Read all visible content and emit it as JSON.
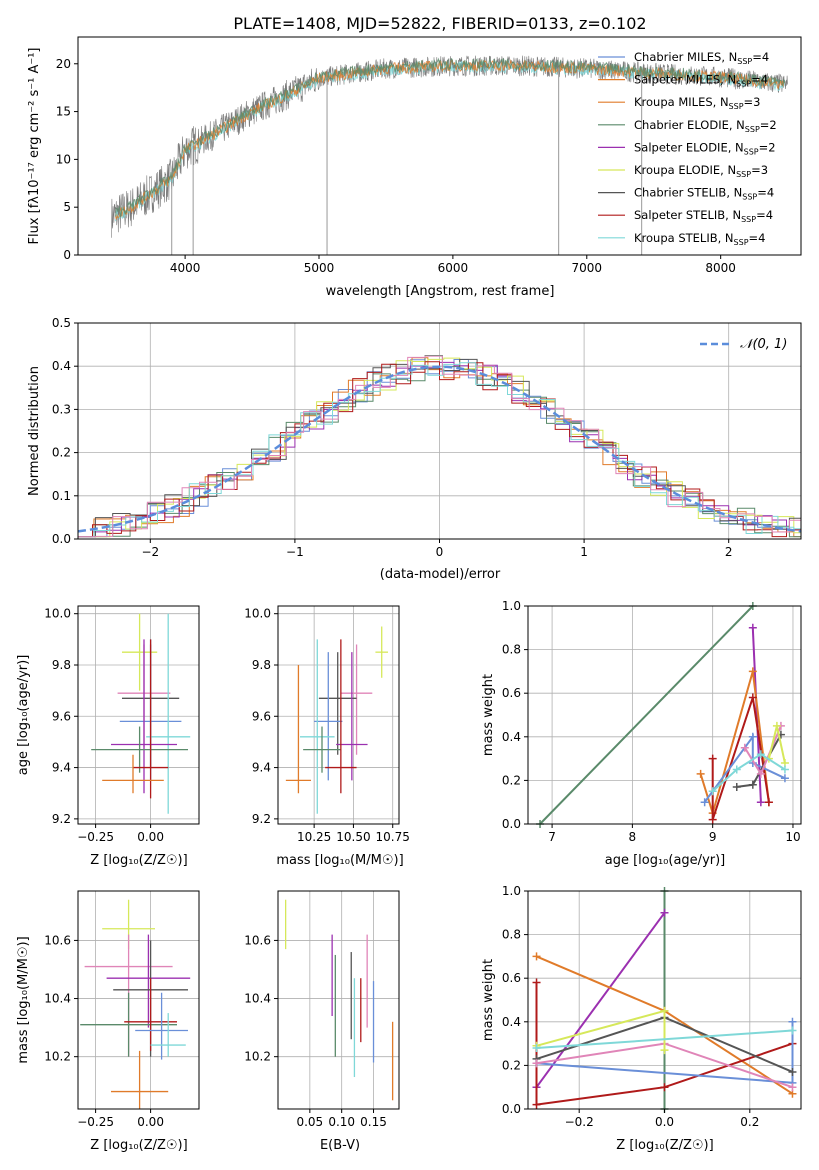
{
  "panel1": {
    "title": "PLATE=1408, MJD=52822, FIBERID=0133, z=0.102",
    "xlabel": "wavelength [Angstrom, rest frame]",
    "ylabel": "Flux [fλ10⁻¹⁷ erg cm⁻² s⁻¹ A⁻¹]",
    "legend": [
      {
        "name": "Chabrier MILES, N",
        "sub": "SSP",
        "tail": "=4",
        "color": "#6a8fd8"
      },
      {
        "name": "Salpeter MILES, N",
        "sub": "SSP",
        "tail": "=4",
        "color": "#e07b2a"
      },
      {
        "name": "Kroupa MILES, N",
        "sub": "SSP",
        "tail": "=3",
        "color": "#e07b2a"
      },
      {
        "name": "Chabrier ELODIE, N",
        "sub": "SSP",
        "tail": "=2",
        "color": "#5a8a6a"
      },
      {
        "name": "Salpeter ELODIE, N",
        "sub": "SSP",
        "tail": "=2",
        "color": "#9b30b0"
      },
      {
        "name": "Kroupa ELODIE, N",
        "sub": "SSP",
        "tail": "=3",
        "color": "#d6e85a"
      },
      {
        "name": "Chabrier STELIB, N",
        "sub": "SSP",
        "tail": "=4",
        "color": "#555555"
      },
      {
        "name": "Salpeter STELIB, N",
        "sub": "SSP",
        "tail": "=4",
        "color": "#b01a1a"
      },
      {
        "name": "Kroupa STELIB, N",
        "sub": "SSP",
        "tail": "=4",
        "color": "#7fd8d8"
      }
    ]
  },
  "panel2": {
    "xlabel": "(data-model)/error",
    "ylabel": "Normed distribution",
    "legend_label": "𝒩(0, 1)"
  },
  "panel3": {
    "xlabel": "Z [log₁₀(Z/Z☉)]",
    "ylabel": "age  [log₁₀(age/yr)]"
  },
  "panel4": {
    "xlabel": "mass [log₁₀(M/M☉)]"
  },
  "panel5": {
    "xlabel": "age  [log₁₀(age/yr)]",
    "ylabel": "mass weight"
  },
  "panel6": {
    "xlabel": "Z [log₁₀(Z/Z☉)]",
    "ylabel": "mass [log₁₀(M/M☉)]"
  },
  "panel7": {
    "xlabel": "E(B-V)"
  },
  "panel8": {
    "xlabel": "Z [log₁₀(Z/Z☉)]",
    "ylabel": "mass weight"
  },
  "chart_data": [
    {
      "type": "line",
      "id": "spectrum",
      "xlim": [
        3200,
        8600
      ],
      "ylim": [
        0,
        22.8
      ],
      "xticks": [
        4000,
        5000,
        6000,
        7000,
        8000
      ],
      "yticks": [
        0,
        5,
        10,
        15,
        20
      ],
      "spectrum_nodes": [
        [
          3450,
          4
        ],
        [
          3600,
          5
        ],
        [
          3750,
          6.5
        ],
        [
          3900,
          8
        ],
        [
          4000,
          11
        ],
        [
          4200,
          12.5
        ],
        [
          4500,
          15
        ],
        [
          4800,
          17
        ],
        [
          5000,
          18.5
        ],
        [
          5500,
          19.5
        ],
        [
          6000,
          19.8
        ],
        [
          6500,
          19.8
        ],
        [
          7000,
          19.5
        ],
        [
          7500,
          19
        ],
        [
          8000,
          18.6
        ],
        [
          8500,
          17.8
        ]
      ],
      "spikes": [
        [
          3900,
          0
        ],
        [
          4060,
          0
        ],
        [
          5060,
          0
        ],
        [
          6790,
          0
        ],
        [
          7410,
          0
        ]
      ]
    },
    {
      "type": "line",
      "id": "residual_hist",
      "xlim": [
        -2.5,
        2.5
      ],
      "ylim": [
        0,
        0.5
      ],
      "xticks": [
        -2,
        -1,
        0,
        1,
        2
      ],
      "yticks": [
        0.0,
        0.1,
        0.2,
        0.3,
        0.4,
        0.5
      ],
      "gaussian": {
        "mean": 0,
        "sigma": 1
      }
    },
    {
      "type": "scatter",
      "id": "Z_vs_age",
      "xlim": [
        -0.33,
        0.22
      ],
      "ylim": [
        9.18,
        10.03
      ],
      "xticks": [
        -0.25,
        0.0
      ],
      "xticklabels": [
        "−0.25",
        "0.00"
      ],
      "yticks": [
        9.2,
        9.4,
        9.6,
        9.8,
        10.0
      ],
      "points": [
        {
          "x": -0.05,
          "y": 9.85,
          "xerr": 0.08,
          "y1": 9.7,
          "y2": 10.0,
          "color": "#d6e85a"
        },
        {
          "x": -0.03,
          "y": 9.69,
          "xerr": 0.12,
          "y1": 9.48,
          "y2": 9.88,
          "color": "#e085b8"
        },
        {
          "x": 0.0,
          "y": 9.67,
          "xerr": 0.13,
          "y1": 9.4,
          "y2": 9.88,
          "color": "#555555"
        },
        {
          "x": 0.0,
          "y": 9.58,
          "xerr": 0.14,
          "y1": 9.35,
          "y2": 9.9,
          "color": "#6a8fd8"
        },
        {
          "x": 0.08,
          "y": 9.52,
          "xerr": 0.1,
          "y1": 9.22,
          "y2": 10.0,
          "color": "#7fd8d8"
        },
        {
          "x": -0.03,
          "y": 9.49,
          "xerr": 0.15,
          "y1": 9.3,
          "y2": 9.9,
          "color": "#9b30b0"
        },
        {
          "x": -0.05,
          "y": 9.47,
          "xerr": 0.22,
          "y1": 9.38,
          "y2": 9.56,
          "color": "#5a8a6a"
        },
        {
          "x": 0.0,
          "y": 9.4,
          "xerr": 0.08,
          "y1": 9.28,
          "y2": 9.9,
          "color": "#b01a1a"
        },
        {
          "x": -0.08,
          "y": 9.35,
          "xerr": 0.14,
          "y1": 9.3,
          "y2": 9.45,
          "color": "#e07b2a"
        }
      ]
    },
    {
      "type": "scatter",
      "id": "mass_vs_age",
      "xlim": [
        10.02,
        10.79
      ],
      "ylim": [
        9.18,
        10.03
      ],
      "xticks": [
        10.25,
        10.5,
        10.75
      ],
      "yticks": [
        9.2,
        9.4,
        9.6,
        9.8,
        10.0
      ],
      "points": [
        {
          "x": 10.68,
          "y": 9.85,
          "xerr": 0.04,
          "y1": 9.75,
          "y2": 9.95,
          "color": "#d6e85a"
        },
        {
          "x": 10.52,
          "y": 9.69,
          "xerr": 0.1,
          "y1": 9.45,
          "y2": 9.88,
          "color": "#e085b8"
        },
        {
          "x": 10.4,
          "y": 9.67,
          "xerr": 0.12,
          "y1": 9.45,
          "y2": 9.85,
          "color": "#555555"
        },
        {
          "x": 10.34,
          "y": 9.58,
          "xerr": 0.09,
          "y1": 9.35,
          "y2": 9.85,
          "color": "#6a8fd8"
        },
        {
          "x": 10.27,
          "y": 9.52,
          "xerr": 0.11,
          "y1": 9.22,
          "y2": 9.9,
          "color": "#7fd8d8"
        },
        {
          "x": 10.49,
          "y": 9.49,
          "xerr": 0.1,
          "y1": 9.35,
          "y2": 9.85,
          "color": "#9b30b0"
        },
        {
          "x": 10.3,
          "y": 9.47,
          "xerr": 0.12,
          "y1": 9.38,
          "y2": 9.56,
          "color": "#5a8a6a"
        },
        {
          "x": 10.42,
          "y": 9.4,
          "xerr": 0.1,
          "y1": 9.3,
          "y2": 9.9,
          "color": "#b01a1a"
        },
        {
          "x": 10.15,
          "y": 9.35,
          "xerr": 0.08,
          "y1": 9.3,
          "y2": 9.8,
          "color": "#e07b2a"
        }
      ]
    },
    {
      "type": "line",
      "id": "age_vs_weight",
      "xlim": [
        6.7,
        10.1
      ],
      "ylim": [
        0,
        1
      ],
      "xticks": [
        7,
        8,
        9,
        10
      ],
      "yticks": [
        0.0,
        0.2,
        0.4,
        0.6,
        0.8,
        1.0
      ],
      "series": [
        {
          "color": "#5a8a6a",
          "pts": [
            [
              6.85,
              0
            ],
            [
              9.5,
              1
            ]
          ]
        },
        {
          "color": "#9b30b0",
          "pts": [
            [
              9.5,
              0.9
            ],
            [
              9.6,
              0.1
            ]
          ]
        },
        {
          "color": "#e07b2a",
          "pts": [
            [
              8.85,
              0.23
            ],
            [
              9.0,
              0.05
            ],
            [
              9.5,
              0.7
            ],
            [
              9.7,
              0.1
            ]
          ]
        },
        {
          "color": "#b01a1a",
          "pts": [
            [
              9.0,
              0.3
            ],
            [
              9.0,
              0.02
            ],
            [
              9.5,
              0.58
            ],
            [
              9.7,
              0.1
            ]
          ]
        },
        {
          "color": "#6a8fd8",
          "pts": [
            [
              8.9,
              0.1
            ],
            [
              9.5,
              0.4
            ],
            [
              9.5,
              0.28
            ],
            [
              9.9,
              0.21
            ]
          ]
        },
        {
          "color": "#555555",
          "pts": [
            [
              9.3,
              0.17
            ],
            [
              9.5,
              0.18
            ],
            [
              9.85,
              0.41
            ]
          ]
        },
        {
          "color": "#e085b8",
          "pts": [
            [
              9.4,
              0.35
            ],
            [
              9.6,
              0.23
            ],
            [
              9.85,
              0.45
            ]
          ]
        },
        {
          "color": "#d6e85a",
          "pts": [
            [
              9.7,
              0.3
            ],
            [
              9.8,
              0.45
            ],
            [
              9.9,
              0.28
            ]
          ]
        },
        {
          "color": "#7fd8d8",
          "pts": [
            [
              9.0,
              0.15
            ],
            [
              9.3,
              0.25
            ],
            [
              9.6,
              0.32
            ],
            [
              9.9,
              0.25
            ]
          ]
        }
      ]
    },
    {
      "type": "scatter",
      "id": "Z_vs_mass",
      "xlim": [
        -0.33,
        0.22
      ],
      "ylim": [
        10.02,
        10.77
      ],
      "xticks": [
        -0.25,
        0.0
      ],
      "xticklabels": [
        "−0.25",
        "0.00"
      ],
      "yticks": [
        10.2,
        10.4,
        10.6
      ],
      "points": [
        {
          "x": -0.1,
          "y": 10.64,
          "xerr": 0.12,
          "y1": 10.57,
          "y2": 10.74,
          "color": "#d6e85a"
        },
        {
          "x": -0.1,
          "y": 10.51,
          "xerr": 0.2,
          "y1": 10.2,
          "y2": 10.62,
          "color": "#e085b8"
        },
        {
          "x": -0.01,
          "y": 10.47,
          "xerr": 0.19,
          "y1": 10.3,
          "y2": 10.62,
          "color": "#9b30b0"
        },
        {
          "x": 0.0,
          "y": 10.43,
          "xerr": 0.17,
          "y1": 10.2,
          "y2": 10.6,
          "color": "#555555"
        },
        {
          "x": -0.1,
          "y": 10.31,
          "xerr": 0.22,
          "y1": 10.2,
          "y2": 10.42,
          "color": "#5a8a6a"
        },
        {
          "x": 0.0,
          "y": 10.32,
          "xerr": 0.12,
          "y1": 10.22,
          "y2": 10.47,
          "color": "#b01a1a"
        },
        {
          "x": 0.05,
          "y": 10.29,
          "xerr": 0.12,
          "y1": 10.19,
          "y2": 10.42,
          "color": "#6a8fd8"
        },
        {
          "x": 0.08,
          "y": 10.24,
          "xerr": 0.08,
          "y1": 10.2,
          "y2": 10.35,
          "color": "#7fd8d8"
        },
        {
          "x": -0.05,
          "y": 10.08,
          "xerr": 0.13,
          "y1": 10.02,
          "y2": 10.22,
          "color": "#e07b2a"
        }
      ]
    },
    {
      "type": "scatter",
      "id": "ebv_vs_mass",
      "xlim": [
        0.0,
        0.19
      ],
      "ylim": [
        10.02,
        10.77
      ],
      "xticks": [
        0.05,
        0.1,
        0.15
      ],
      "xticklabels": [
        "0.05",
        "0.10",
        "0.15"
      ],
      "yticks": [
        10.2,
        10.4,
        10.6
      ],
      "points": [
        {
          "x": 0.012,
          "y": 10.66,
          "y1": 10.57,
          "y2": 10.74,
          "color": "#d6e85a"
        },
        {
          "x": 0.085,
          "y": 10.48,
          "y1": 10.34,
          "y2": 10.62,
          "color": "#9b30b0"
        },
        {
          "x": 0.09,
          "y": 10.4,
          "y1": 10.2,
          "y2": 10.55,
          "color": "#5a8a6a"
        },
        {
          "x": 0.115,
          "y": 10.43,
          "y1": 10.26,
          "y2": 10.56,
          "color": "#555555"
        },
        {
          "x": 0.12,
          "y": 10.3,
          "y1": 10.13,
          "y2": 10.47,
          "color": "#7fd8d8"
        },
        {
          "x": 0.13,
          "y": 10.36,
          "y1": 10.25,
          "y2": 10.47,
          "color": "#b01a1a"
        },
        {
          "x": 0.14,
          "y": 10.48,
          "y1": 10.3,
          "y2": 10.62,
          "color": "#e085b8"
        },
        {
          "x": 0.15,
          "y": 10.35,
          "y1": 10.18,
          "y2": 10.46,
          "color": "#6a8fd8"
        },
        {
          "x": 0.18,
          "y": 10.15,
          "y1": 10.05,
          "y2": 10.32,
          "color": "#e07b2a"
        }
      ]
    },
    {
      "type": "line",
      "id": "Z_vs_weight",
      "xlim": [
        -0.32,
        0.32
      ],
      "ylim": [
        0,
        1
      ],
      "xticks": [
        -0.2,
        0.0,
        0.2
      ],
      "xticklabels": [
        "−0.2",
        "0.0",
        "0.2"
      ],
      "yticks": [
        0.0,
        0.2,
        0.4,
        0.6,
        0.8,
        1.0
      ],
      "series": [
        {
          "color": "#5a8a6a",
          "pts": [
            [
              0.0,
              0
            ],
            [
              0.0,
              1
            ]
          ]
        },
        {
          "color": "#9b30b0",
          "pts": [
            [
              -0.3,
              0.1
            ],
            [
              0.0,
              0.9
            ]
          ]
        },
        {
          "color": "#e07b2a",
          "pts": [
            [
              -0.3,
              0.7
            ],
            [
              0.0,
              0.45
            ],
            [
              0.3,
              0.07
            ]
          ]
        },
        {
          "color": "#b01a1a",
          "pts": [
            [
              -0.3,
              0.58
            ],
            [
              -0.3,
              0.02
            ],
            [
              0.0,
              0.1
            ],
            [
              0.3,
              0.3
            ]
          ]
        },
        {
          "color": "#6a8fd8",
          "pts": [
            [
              -0.3,
              0.21
            ],
            [
              0.3,
              0.12
            ],
            [
              0.3,
              0.4
            ]
          ]
        },
        {
          "color": "#555555",
          "pts": [
            [
              -0.3,
              0.23
            ],
            [
              0.0,
              0.42
            ],
            [
              0.3,
              0.17
            ]
          ]
        },
        {
          "color": "#e085b8",
          "pts": [
            [
              -0.3,
              0.21
            ],
            [
              0.0,
              0.3
            ],
            [
              0.3,
              0.1
            ]
          ]
        },
        {
          "color": "#d6e85a",
          "pts": [
            [
              -0.3,
              0.29
            ],
            [
              0.0,
              0.45
            ],
            [
              0.0,
              0.27
            ]
          ]
        },
        {
          "color": "#7fd8d8",
          "pts": [
            [
              -0.3,
              0.28
            ],
            [
              0.3,
              0.36
            ]
          ]
        }
      ]
    }
  ]
}
